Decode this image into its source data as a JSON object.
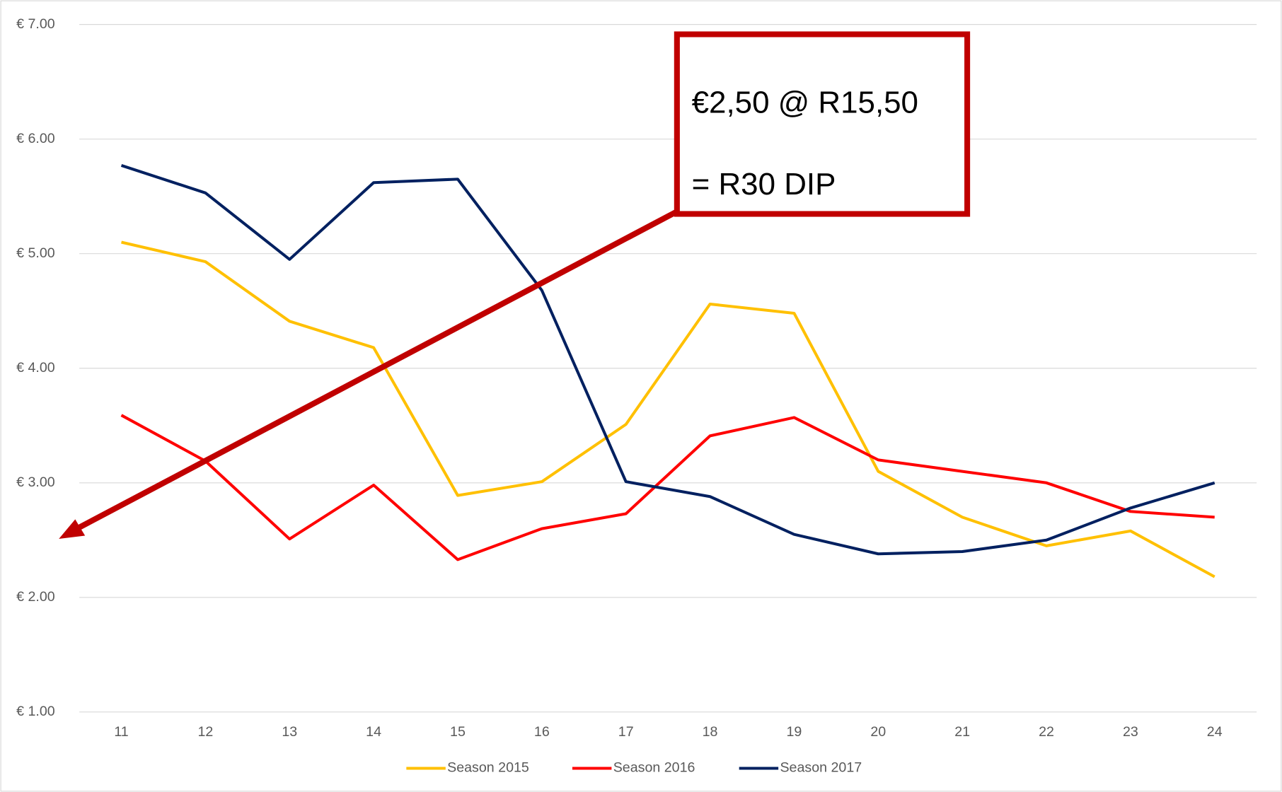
{
  "chart_data": {
    "type": "line",
    "categories": [
      "11",
      "12",
      "13",
      "14",
      "15",
      "16",
      "17",
      "18",
      "19",
      "20",
      "21",
      "22",
      "23",
      "24"
    ],
    "series": [
      {
        "name": "Season 2015",
        "color": "#ffc000",
        "values": [
          5.1,
          4.93,
          4.41,
          4.18,
          2.89,
          3.01,
          3.51,
          4.56,
          4.48,
          3.1,
          2.7,
          2.45,
          2.58,
          2.18
        ]
      },
      {
        "name": "Season 2016",
        "color": "#ff0000",
        "values": [
          3.59,
          3.19,
          2.51,
          2.98,
          2.33,
          2.6,
          2.73,
          3.41,
          3.57,
          3.2,
          3.1,
          3.0,
          2.75,
          2.7
        ]
      },
      {
        "name": "Season 2017",
        "color": "#002060",
        "values": [
          5.77,
          5.53,
          4.95,
          5.62,
          5.65,
          4.68,
          3.01,
          2.88,
          2.55,
          2.38,
          2.4,
          2.5,
          2.78,
          3.0
        ]
      }
    ],
    "ylim": [
      1,
      7
    ],
    "yticks": [
      {
        "value": 1,
        "label": "€ 1.00"
      },
      {
        "value": 2,
        "label": "€ 2.00"
      },
      {
        "value": 3,
        "label": "€ 3.00"
      },
      {
        "value": 4,
        "label": "€ 4.00"
      },
      {
        "value": 5,
        "label": "€ 5.00"
      },
      {
        "value": 6,
        "label": "€ 6.00"
      },
      {
        "value": 7,
        "label": "€ 7.00"
      }
    ],
    "grid": true,
    "legend": "bottom",
    "annotations": [
      "€2,50 @ R15,50",
      "= R30 DIP"
    ]
  }
}
